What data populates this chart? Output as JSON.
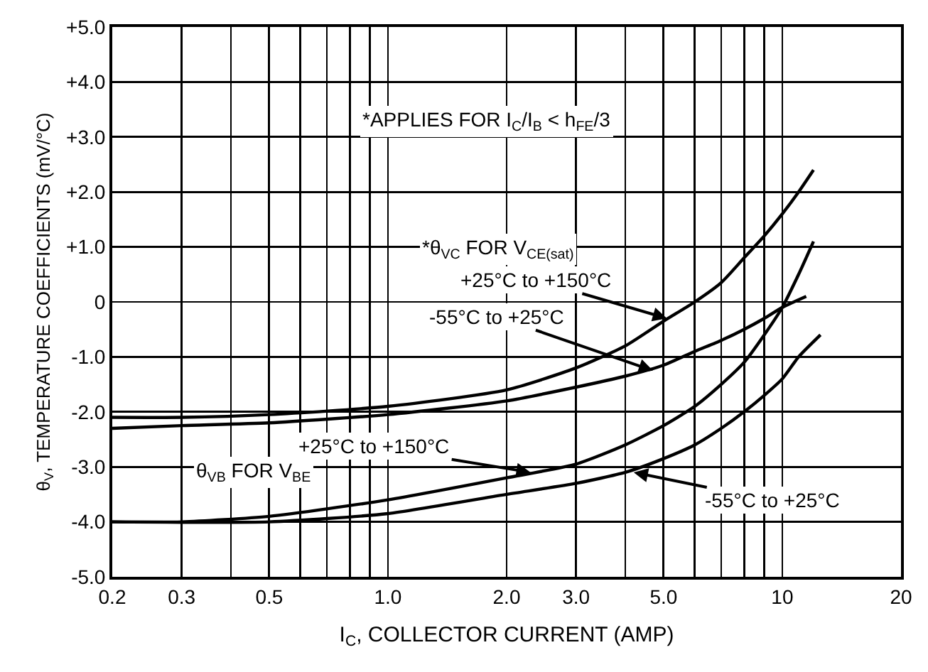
{
  "chart_data": {
    "type": "line",
    "xlabel": "I$_{C}$, COLLECTOR CURRENT (AMP)",
    "ylabel": "θ$_{V}$, TEMPERATURE COEFFICIENTS (mV/°C)",
    "log": "x",
    "grid": true,
    "marker": "none",
    "line_style": "solid",
    "xlim": [
      0.2,
      20
    ],
    "ylim": [
      -5,
      5
    ],
    "xticks": [
      {
        "value": 0.2,
        "label": "0.2"
      },
      {
        "value": 0.3,
        "label": "0.3"
      },
      {
        "value": 0.4,
        "label": null
      },
      {
        "value": 0.5,
        "label": "0.5"
      },
      {
        "value": 0.6,
        "label": null
      },
      {
        "value": 0.7,
        "label": null
      },
      {
        "value": 0.8,
        "label": null
      },
      {
        "value": 0.9,
        "label": null
      },
      {
        "value": 1,
        "label": "1.0"
      },
      {
        "value": 2,
        "label": "2.0"
      },
      {
        "value": 3,
        "label": "3.0"
      },
      {
        "value": 4,
        "label": null
      },
      {
        "value": 5,
        "label": "5.0"
      },
      {
        "value": 6,
        "label": null
      },
      {
        "value": 7,
        "label": null
      },
      {
        "value": 8,
        "label": null
      },
      {
        "value": 9,
        "label": null
      },
      {
        "value": 10,
        "label": "10"
      },
      {
        "value": 20,
        "label": "20"
      }
    ],
    "yticks": [
      {
        "value": 5,
        "label": "+5.0"
      },
      {
        "value": 4,
        "label": "+4.0"
      },
      {
        "value": 3,
        "label": "+3.0"
      },
      {
        "value": 2,
        "label": "+2.0"
      },
      {
        "value": 1,
        "label": "+1.0"
      },
      {
        "value": 0,
        "label": "0"
      },
      {
        "value": -1,
        "label": "-1.0"
      },
      {
        "value": -2,
        "label": "-2.0"
      },
      {
        "value": -3,
        "label": "-3.0"
      },
      {
        "value": -4,
        "label": "-4.0"
      },
      {
        "value": -5,
        "label": "-5.0"
      }
    ],
    "series": [
      {
        "color": "#000000",
        "x": [
          0.2,
          0.3,
          0.5,
          1,
          2,
          3,
          4,
          5,
          6,
          7,
          8,
          9,
          10,
          11,
          12
        ],
        "values": [
          -2.1,
          -2.1,
          -2.05,
          -1.9,
          -1.6,
          -1.2,
          -0.8,
          -0.35,
          0,
          0.35,
          0.8,
          1.2,
          1.6,
          2,
          2.4
        ]
      },
      {
        "color": "#000000",
        "x": [
          0.2,
          0.3,
          0.5,
          1,
          2,
          3,
          4,
          5,
          6,
          7,
          8,
          9,
          10,
          11.5
        ],
        "values": [
          -2.3,
          -2.25,
          -2.2,
          -2.05,
          -1.8,
          -1.55,
          -1.35,
          -1.15,
          -0.9,
          -0.7,
          -0.5,
          -0.3,
          -0.1,
          0.1
        ]
      },
      {
        "color": "#000000",
        "x": [
          0.2,
          0.3,
          0.5,
          1,
          2,
          3,
          4,
          5,
          6,
          7,
          8,
          9,
          10,
          11,
          12
        ],
        "values": [
          -4,
          -4,
          -3.9,
          -3.6,
          -3.2,
          -2.95,
          -2.6,
          -2.25,
          -1.9,
          -1.5,
          -1.1,
          -0.6,
          -0.1,
          0.5,
          1.1
        ]
      },
      {
        "color": "#000000",
        "x": [
          0.2,
          0.5,
          1,
          2,
          3,
          4,
          5,
          6,
          7,
          8,
          9,
          10,
          11,
          12.5
        ],
        "values": [
          -4,
          -4,
          -3.85,
          -3.5,
          -3.3,
          -3.1,
          -2.85,
          -2.6,
          -2.3,
          -2,
          -1.7,
          -1.4,
          -1,
          -0.6
        ]
      }
    ],
    "annotations": [
      "*APPLIES FOR I$_{C}$/I$_{B}$ < h$_{FE}$/3",
      "*θ$_{VC}$ FOR V$_{CE(sat)}$",
      {
        "text": "+25°C to +150°C",
        "x": 5.1,
        "y": -0.3
      },
      {
        "text": "-55°C to +25°C",
        "x": 4.7,
        "y": -1.25
      },
      "θ$_{VB}$ FOR V$_{BE}$",
      {
        "text": "+25°C to +150°C",
        "x": 2.3,
        "y": -3.1
      },
      {
        "text": "-55°C to +25°C",
        "x": 4.2,
        "y": -3.1
      }
    ]
  }
}
